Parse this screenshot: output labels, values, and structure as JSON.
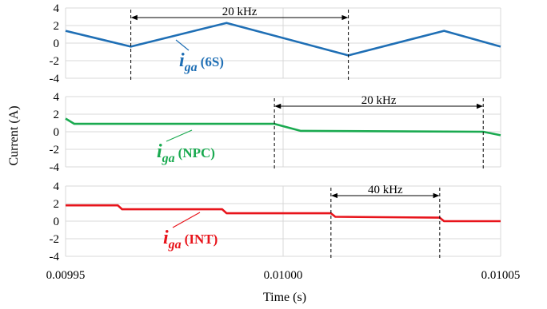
{
  "chart_data": {
    "type": "line",
    "xlabel": "Time (s)",
    "ylabel": "Current (A)",
    "xlim": [
      0.00995,
      0.01005
    ],
    "x_ticks": [
      "0.00995",
      "0.01000",
      "0.01005"
    ],
    "x_tick_values": [
      0.00995,
      0.01,
      0.01005
    ],
    "grid": true,
    "panels": [
      {
        "series_label": {
          "main": "i",
          "sub": "ga",
          "tag": "(6S)"
        },
        "color": "#1f6fb5",
        "ylim": [
          -4,
          4
        ],
        "y_ticks": [
          "4",
          "2",
          "0",
          "-2",
          "-4"
        ],
        "y_tick_values": [
          4,
          2,
          0,
          -2,
          -4
        ],
        "x": [
          0.00995,
          0.009965,
          0.009987,
          0.010015,
          0.010037,
          0.01005
        ],
        "y": [
          1.4,
          -0.4,
          2.3,
          -1.4,
          1.4,
          -0.4
        ],
        "annotation": {
          "text": "20 kHz",
          "x_start": 0.009965,
          "x_end": 0.010015
        }
      },
      {
        "series_label": {
          "main": "i",
          "sub": "ga",
          "tag": "(NPC)"
        },
        "color": "#1aaa50",
        "ylim": [
          -4,
          4
        ],
        "y_ticks": [
          "4",
          "2",
          "0",
          "-2",
          "-4"
        ],
        "y_tick_values": [
          4,
          2,
          0,
          -2,
          -4
        ],
        "x": [
          0.00995,
          0.009952,
          0.009998,
          0.010004,
          0.010046,
          0.01005
        ],
        "y": [
          1.5,
          0.9,
          0.9,
          0.1,
          0.0,
          -0.4
        ],
        "annotation": {
          "text": "20 kHz",
          "x_start": 0.009998,
          "x_end": 0.010046
        }
      },
      {
        "series_label": {
          "main": "i",
          "sub": "ga",
          "tag": "(INT)"
        },
        "color": "#e8141b",
        "ylim": [
          -4,
          4
        ],
        "y_ticks": [
          "4",
          "2",
          "0",
          "-2",
          "-4"
        ],
        "y_tick_values": [
          4,
          2,
          0,
          -2,
          -4
        ],
        "x": [
          0.00995,
          0.009962,
          0.009963,
          0.009986,
          0.009987,
          0.010011,
          0.010012,
          0.010036,
          0.010037,
          0.01005
        ],
        "y": [
          1.8,
          1.8,
          1.35,
          1.35,
          0.9,
          0.9,
          0.5,
          0.4,
          0.0,
          0.0
        ],
        "annotation": {
          "text": "40 kHz",
          "x_start": 0.010011,
          "x_end": 0.010036
        }
      }
    ]
  }
}
